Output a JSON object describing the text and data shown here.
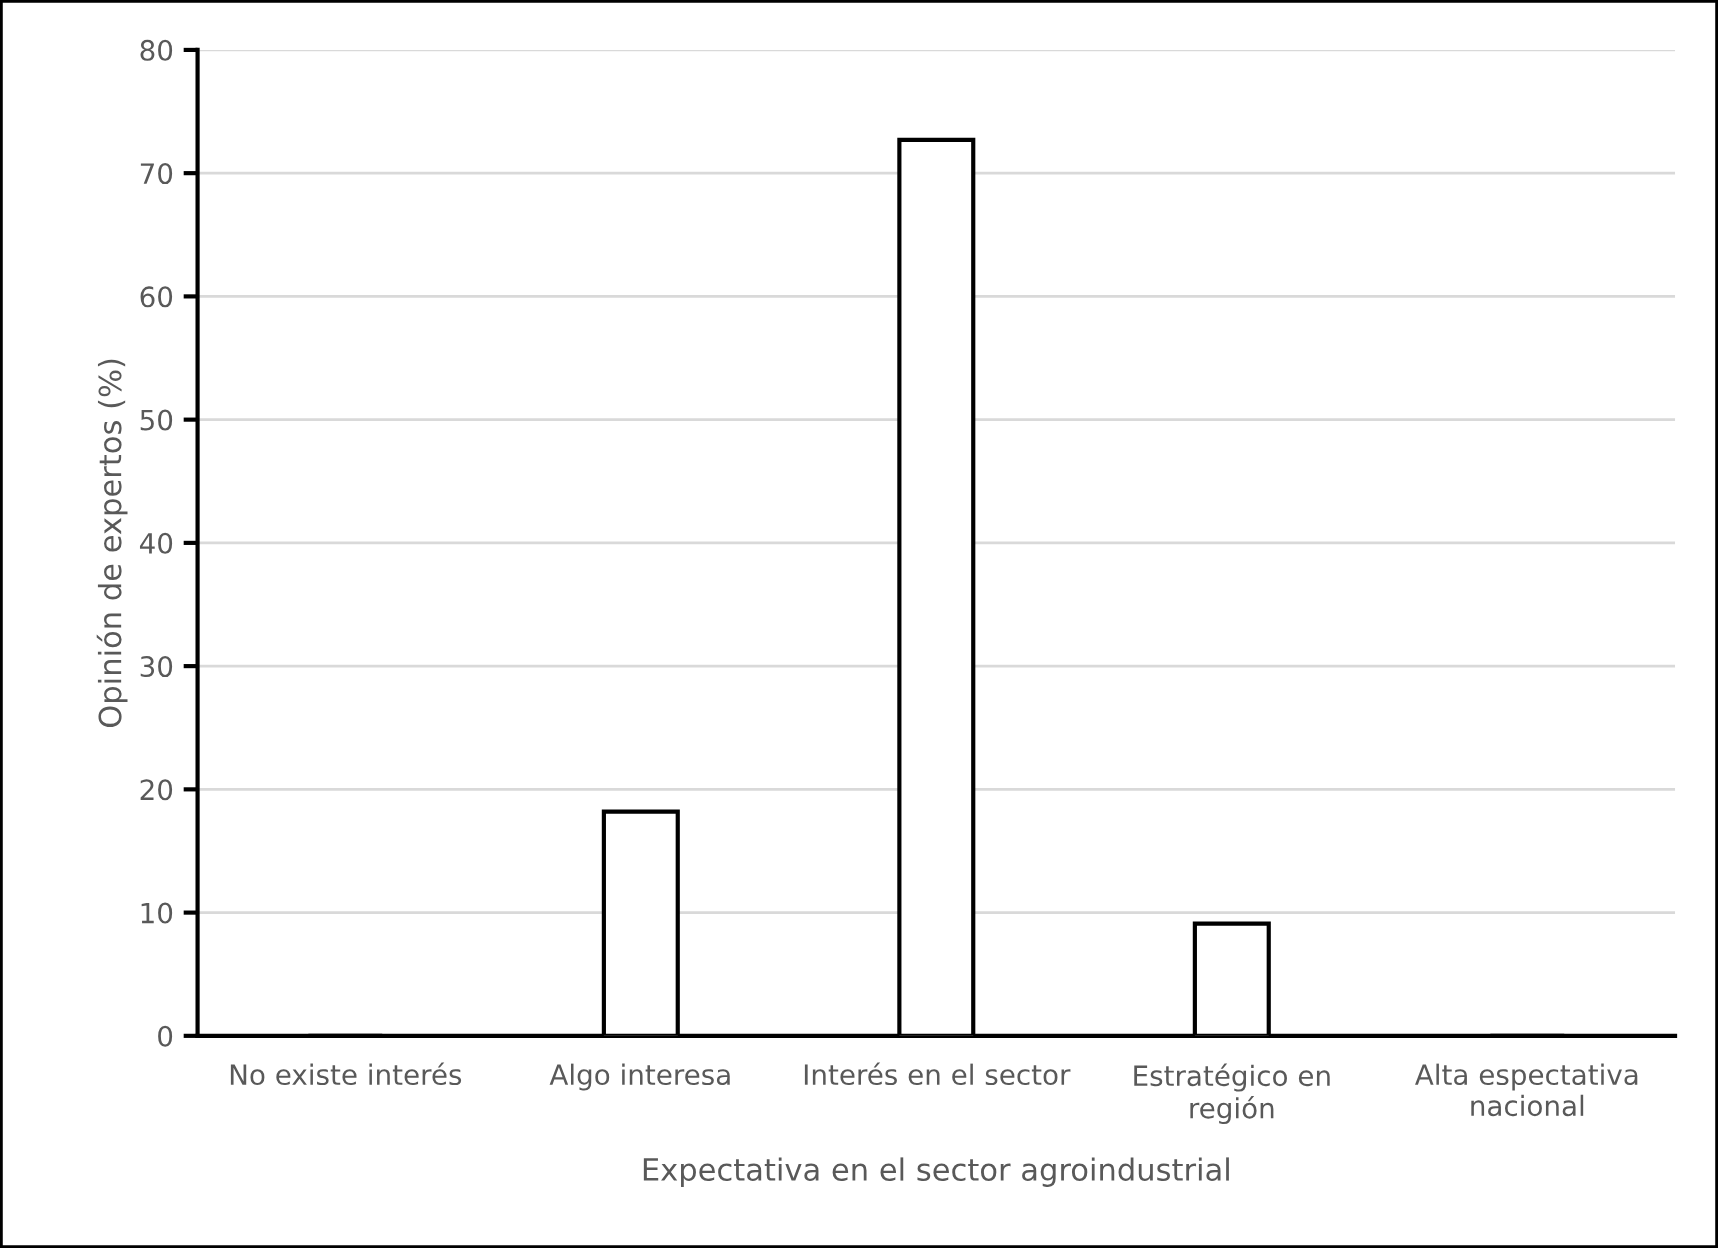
{
  "chart_data": {
    "type": "bar",
    "categories": [
      "No existe interés",
      "Algo interesa",
      "Interés en el sector",
      "Estratégico en\nregión",
      "Alta espectativa\nnacional"
    ],
    "values": [
      0,
      18.2,
      72.7,
      9.1,
      0
    ],
    "color": "#ffffff",
    "xlabel": "Expectativa en el sector agroindustrial",
    "ylabel": "Opinión de expertos (%)",
    "ylim": [
      0,
      80
    ],
    "yticks": [
      0,
      10,
      20,
      30,
      40,
      50,
      60,
      70,
      80
    ],
    "grid": "y"
  }
}
